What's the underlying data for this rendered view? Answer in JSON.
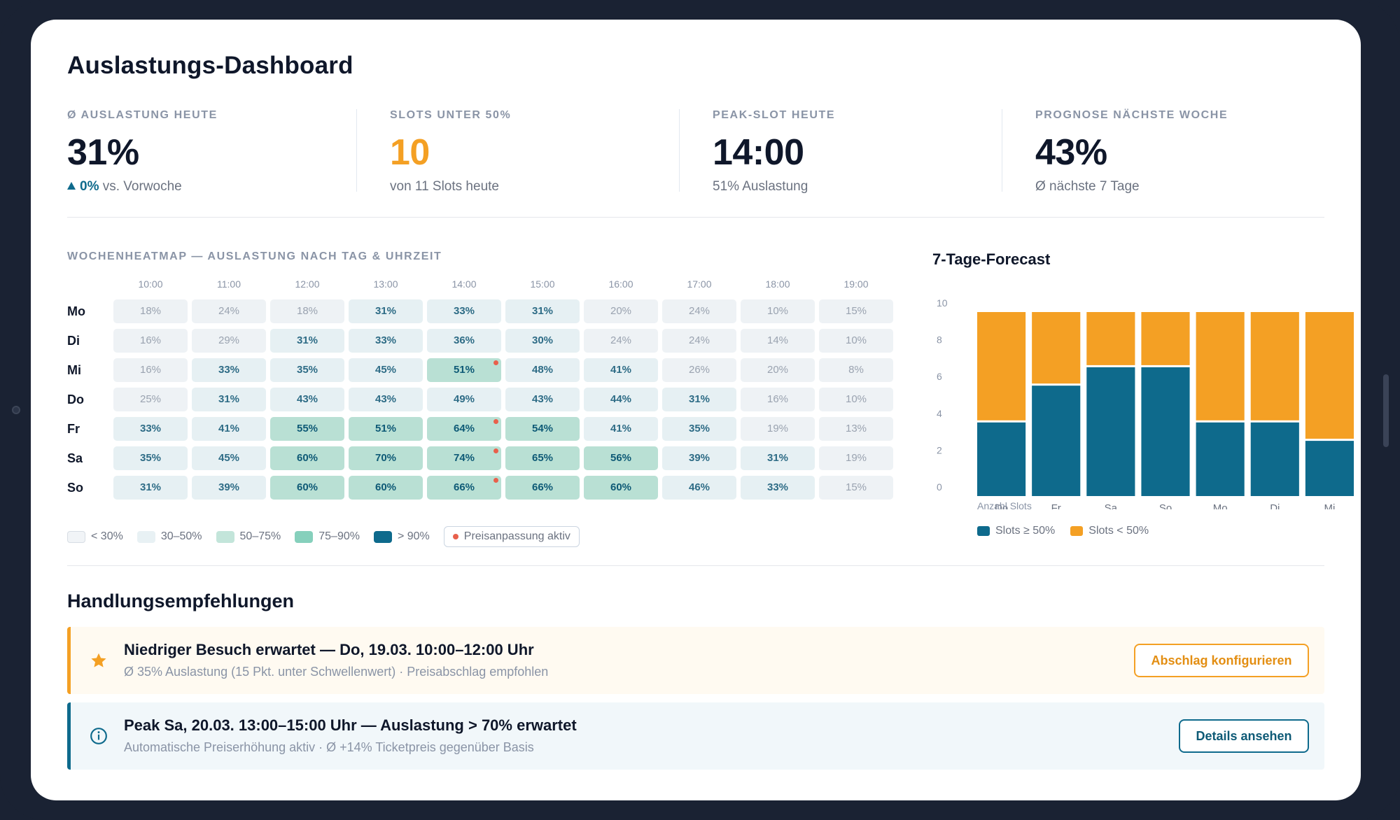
{
  "title": "Auslastungs-Dashboard",
  "kpis": [
    {
      "label": "Ø AUSLASTUNG HEUTE",
      "value": "31%",
      "delta": "0%",
      "sub": " vs. Vorwoche"
    },
    {
      "label": "SLOTS UNTER 50%",
      "value": "10",
      "sub": "von 11 Slots heute"
    },
    {
      "label": "PEAK-SLOT HEUTE",
      "value": "14:00",
      "sub": "51% Auslastung"
    },
    {
      "label": "PROGNOSE NÄCHSTE WOCHE",
      "value": "43%",
      "sub": "Ø nächste 7 Tage"
    }
  ],
  "heatmap": {
    "title": "WOCHENHEATMAP — AUSLASTUNG NACH TAG & UHRZEIT",
    "hours": [
      "10:00",
      "11:00",
      "12:00",
      "13:00",
      "14:00",
      "15:00",
      "16:00",
      "17:00",
      "18:00",
      "19:00"
    ],
    "days": [
      "Mo",
      "Di",
      "Mi",
      "Do",
      "Fr",
      "Sa",
      "So"
    ],
    "values": [
      [
        "18%",
        "24%",
        "18%",
        "31%",
        "33%",
        "31%",
        "20%",
        "24%",
        "10%",
        "15%"
      ],
      [
        "16%",
        "29%",
        "31%",
        "33%",
        "36%",
        "30%",
        "24%",
        "24%",
        "14%",
        "10%"
      ],
      [
        "16%",
        "33%",
        "35%",
        "45%",
        "51%",
        "48%",
        "41%",
        "26%",
        "20%",
        "8%"
      ],
      [
        "25%",
        "31%",
        "43%",
        "43%",
        "49%",
        "43%",
        "44%",
        "31%",
        "16%",
        "10%"
      ],
      [
        "33%",
        "41%",
        "55%",
        "51%",
        "64%",
        "54%",
        "41%",
        "35%",
        "19%",
        "13%"
      ],
      [
        "35%",
        "45%",
        "60%",
        "70%",
        "74%",
        "65%",
        "56%",
        "39%",
        "31%",
        "19%"
      ],
      [
        "31%",
        "39%",
        "60%",
        "60%",
        "66%",
        "66%",
        "60%",
        "46%",
        "33%",
        "15%"
      ]
    ],
    "price_adjust": [
      [
        2,
        4
      ],
      [
        4,
        4
      ],
      [
        5,
        4
      ],
      [
        6,
        4
      ]
    ],
    "legend": [
      "< 30%",
      "30–50%",
      "50–75%",
      "75–90%",
      "> 90%"
    ],
    "legend_pill": "Preisanpassung aktiv",
    "colors": {
      "low": "#eef2f5",
      "mid": "#e6f0f3",
      "high": "#b9e0d4",
      "very_high": "#86d0bc",
      "max": "#0e6a8c",
      "dot": "#e8604c"
    }
  },
  "forecast": {
    "title": "7-Tage-Forecast",
    "axis_note": "Anzahl Slots",
    "legend": [
      "Slots ≥ 50%",
      "Slots < 50%"
    ],
    "colors": {
      "above": "#0e6a8c",
      "below": "#f4a024"
    }
  },
  "chart_data": {
    "type": "bar",
    "stacked": true,
    "categories": [
      "Do",
      "Fr",
      "Sa",
      "So",
      "Mo",
      "Di",
      "Mi"
    ],
    "series": [
      {
        "name": "Slots ≥ 50%",
        "values": [
          4,
          6,
          7,
          7,
          4,
          4,
          3
        ]
      },
      {
        "name": "Slots < 50%",
        "values": [
          6,
          4,
          3,
          3,
          6,
          6,
          7
        ]
      }
    ],
    "yticks": [
      0,
      2,
      4,
      6,
      8,
      10
    ],
    "ylim": [
      0,
      10
    ],
    "title": "7-Tage-Forecast",
    "xlabel": "Anzahl Slots",
    "ylabel": "",
    "legend_position": "bottom-left"
  },
  "recommendations": {
    "title": "Handlungsempfehlungen",
    "items": [
      {
        "heading": "Niedriger Besuch erwartet — Do, 19.03. 10:00–12:00 Uhr",
        "sub": "Ø 35% Auslastung (15 Pkt. unter Schwellenwert) · Preisabschlag empfohlen",
        "button": "Abschlag konfigurieren"
      },
      {
        "heading": "Peak Sa, 20.03. 13:00–15:00 Uhr — Auslastung > 70% erwartet",
        "sub": "Automatische Preiserhöhung aktiv · Ø +14% Ticketpreis gegenüber Basis",
        "button": "Details ansehen"
      }
    ]
  }
}
